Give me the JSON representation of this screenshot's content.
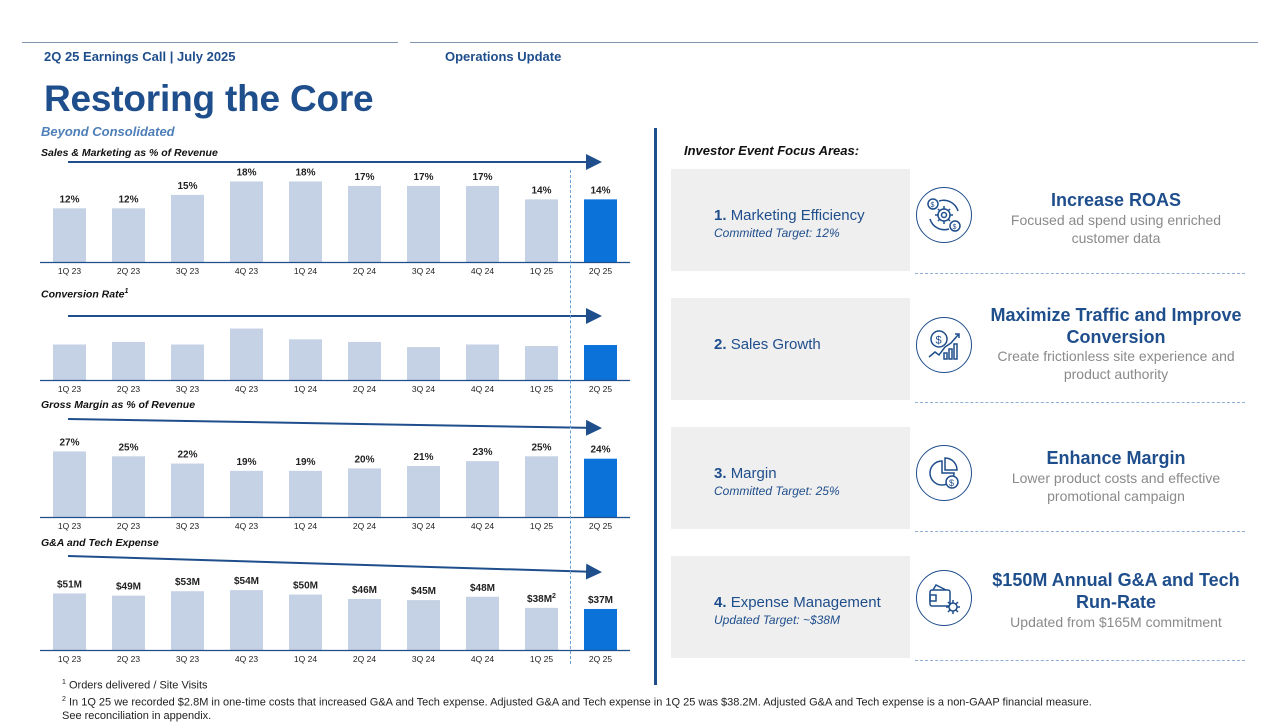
{
  "header": {
    "left": "2Q 25 Earnings Call | July 2025",
    "section": "Operations Update"
  },
  "title": "Restoring the Core",
  "subtitle": "Beyond Consolidated",
  "colors": {
    "primary": "#1f4e8c",
    "bar": "#c5d1e4",
    "bar_highlight": "#0a72d8",
    "dashed": "#6a9fd6"
  },
  "chart_data": [
    {
      "type": "bar",
      "title": "Sales & Marketing as % of Revenue",
      "categories": [
        "1Q 23",
        "2Q 23",
        "3Q 23",
        "4Q 23",
        "1Q 24",
        "2Q 24",
        "3Q 24",
        "4Q 24",
        "1Q 25",
        "2Q 25"
      ],
      "values": [
        12,
        12,
        15,
        18,
        18,
        17,
        17,
        17,
        14,
        14
      ],
      "labels": [
        "12%",
        "12%",
        "15%",
        "18%",
        "18%",
        "17%",
        "17%",
        "17%",
        "14%",
        "14%"
      ],
      "highlight_index": 9,
      "ylim": [
        0,
        19
      ],
      "trend": "flat-arrow"
    },
    {
      "type": "bar",
      "title": "Conversion Rate",
      "title_sup": "1",
      "categories": [
        "1Q 23",
        "2Q 23",
        "3Q 23",
        "4Q 23",
        "1Q 24",
        "2Q 24",
        "3Q 24",
        "4Q 24",
        "1Q 25",
        "2Q 25"
      ],
      "values": [
        0.69,
        0.74,
        0.69,
        1.0,
        0.79,
        0.74,
        0.64,
        0.69,
        0.66,
        0.68
      ],
      "labels": [],
      "highlight_index": 9,
      "ylim": [
        0,
        1.05
      ],
      "trend": "flat-arrow"
    },
    {
      "type": "bar",
      "title": "Gross Margin as % of Revenue",
      "categories": [
        "1Q 23",
        "2Q 23",
        "3Q 23",
        "4Q 23",
        "1Q 24",
        "2Q 24",
        "3Q 24",
        "4Q 24",
        "1Q 25",
        "2Q 25"
      ],
      "values": [
        27,
        25,
        22,
        19,
        19,
        20,
        21,
        23,
        25,
        24
      ],
      "labels": [
        "27%",
        "25%",
        "22%",
        "19%",
        "19%",
        "20%",
        "21%",
        "23%",
        "25%",
        "24%"
      ],
      "highlight_index": 9,
      "ylim": [
        0,
        28
      ],
      "trend": "down-arrow"
    },
    {
      "type": "bar",
      "title": "G&A and Tech Expense",
      "categories": [
        "1Q 23",
        "2Q 23",
        "3Q 23",
        "4Q 23",
        "1Q 24",
        "2Q 24",
        "3Q 24",
        "4Q 24",
        "1Q 25",
        "2Q 25"
      ],
      "values": [
        51,
        49,
        53,
        54,
        50,
        46,
        45,
        48,
        38,
        37
      ],
      "labels": [
        "$51M",
        "$49M",
        "$53M",
        "$54M",
        "$50M",
        "$46M",
        "$45M",
        "$48M",
        "$38M",
        "$37M"
      ],
      "label_sup": {
        "8": "2"
      },
      "highlight_index": 9,
      "ylim": [
        0,
        55
      ],
      "trend": "down-arrow"
    }
  ],
  "focus": {
    "title": "Investor Event Focus Areas:",
    "areas": [
      {
        "num": "1.",
        "name": "Marketing Efficiency",
        "target": "Committed Target: 12%",
        "icon": "roas-gear-dollar-icon",
        "heading": "Increase ROAS",
        "desc": "Focused ad spend using enriched customer data"
      },
      {
        "num": "2.",
        "name": "Sales Growth",
        "target": "",
        "icon": "dollar-growth-chart-icon",
        "heading": "Maximize Traffic and Improve Conversion",
        "desc": "Create frictionless site experience and product authority"
      },
      {
        "num": "3.",
        "name": "Margin",
        "target": "Committed Target: 25%",
        "icon": "pie-chart-dollar-icon",
        "heading": "Enhance Margin",
        "desc": "Lower product costs and effective promotional campaign"
      },
      {
        "num": "4.",
        "name": "Expense Management",
        "target": "Updated Target: ~$38M",
        "icon": "wallet-gear-icon",
        "heading": "$150M Annual G&A and Tech Run-Rate",
        "desc": "Updated from $165M commitment"
      }
    ]
  },
  "footnotes": {
    "f1_mark": "1",
    "f1": "Orders delivered / Site Visits",
    "f2_mark": "2",
    "f2": "In 1Q 25 we recorded $2.8M in one-time costs that increased G&A and Tech expense. Adjusted G&A and Tech expense in 1Q 25 was $38.2M. Adjusted G&A and Tech expense is a non-GAAP financial measure.",
    "f2b": "See reconciliation in appendix."
  }
}
